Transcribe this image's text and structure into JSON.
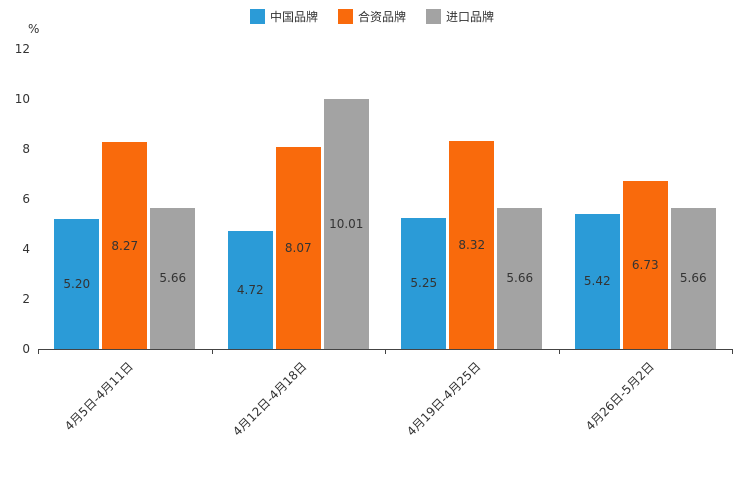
{
  "chart_data": {
    "type": "bar",
    "title": "",
    "ylabel": "%",
    "xlabel": "",
    "legend_position": "top",
    "grid": false,
    "ylim": [
      0,
      12
    ],
    "yticks": [
      0,
      2,
      4,
      6,
      8,
      10,
      12
    ],
    "categories": [
      "4月5日-4月11日",
      "4月12日-4月18日",
      "4月19日-4月25日",
      "4月26日-5月2日"
    ],
    "series": [
      {
        "name": "中国品牌",
        "color": "#2B9BD7",
        "values": [
          5.2,
          4.72,
          5.25,
          5.42
        ]
      },
      {
        "name": "合资品牌",
        "color": "#F96A0C",
        "values": [
          8.27,
          8.07,
          8.32,
          6.73
        ]
      },
      {
        "name": "进口品牌",
        "color": "#A3A3A3",
        "values": [
          5.66,
          10.01,
          5.66,
          5.66
        ]
      }
    ],
    "colors": {
      "axis": "#444444",
      "label_text": "#333333",
      "background": "#ffffff"
    }
  }
}
